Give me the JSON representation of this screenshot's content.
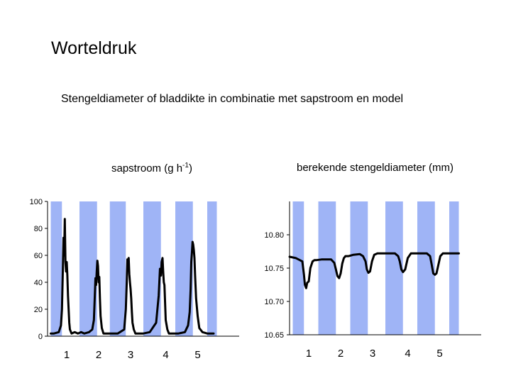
{
  "title": "Worteldruk",
  "subtitle": "Stengeldiameter of bladdikte in combinatie met sapstroom en  model",
  "colors": {
    "band": "#9fb4f6",
    "line": "#000000",
    "axis": "#000000"
  },
  "chart_data": [
    {
      "type": "line",
      "label": "sapstroom (g h",
      "label_sup": "-1",
      "label_end": ")",
      "ylim": [
        0,
        100
      ],
      "yticks": [
        "100",
        "80",
        "60",
        "40",
        "20",
        "0"
      ],
      "ytick_values": [
        100,
        80,
        60,
        40,
        20,
        0
      ],
      "xlim": [
        0,
        6
      ],
      "xticks": [
        "1",
        "2",
        "3",
        "4",
        "5"
      ],
      "xtick_values": [
        0.6,
        1.6,
        2.6,
        3.7,
        4.7
      ],
      "day_bands": [
        [
          0.1,
          0.45
        ],
        [
          1.0,
          1.55
        ],
        [
          1.95,
          2.45
        ],
        [
          3.0,
          3.55
        ],
        [
          4.0,
          4.55
        ],
        [
          5.0,
          5.3
        ]
      ],
      "series": [
        {
          "x": [
            0.1,
            0.2,
            0.35,
            0.42,
            0.45,
            0.48,
            0.5,
            0.52,
            0.54,
            0.56,
            0.58,
            0.6,
            0.62,
            0.64,
            0.66,
            0.68,
            0.7,
            0.75,
            0.85,
            0.95,
            1.05,
            1.15,
            1.3,
            1.4,
            1.45,
            1.48,
            1.5,
            1.52,
            1.54,
            1.56,
            1.58,
            1.6,
            1.62,
            1.64,
            1.66,
            1.7,
            1.75,
            1.85,
            2.0,
            2.2,
            2.4,
            2.45,
            2.48,
            2.5,
            2.52,
            2.54,
            2.56,
            2.58,
            2.6,
            2.62,
            2.64,
            2.66,
            2.7,
            2.75,
            2.85,
            3.0,
            3.2,
            3.4,
            3.48,
            3.52,
            3.55,
            3.57,
            3.6,
            3.62,
            3.64,
            3.66,
            3.68,
            3.7,
            3.75,
            3.8,
            3.9,
            4.1,
            4.3,
            4.4,
            4.45,
            4.48,
            4.5,
            4.52,
            4.54,
            4.56,
            4.58,
            4.6,
            4.62,
            4.65,
            4.7,
            4.75,
            4.85,
            5.0,
            5.2
          ],
          "y": [
            2,
            2,
            3,
            8,
            20,
            50,
            73,
            60,
            87,
            55,
            48,
            55,
            45,
            30,
            20,
            10,
            5,
            2,
            3,
            2,
            3,
            2,
            3,
            5,
            12,
            30,
            43,
            38,
            48,
            56,
            52,
            40,
            44,
            28,
            15,
            6,
            2,
            2,
            2,
            2,
            5,
            20,
            40,
            57,
            52,
            58,
            46,
            40,
            35,
            28,
            18,
            10,
            5,
            2,
            2,
            2,
            3,
            10,
            30,
            50,
            45,
            55,
            58,
            48,
            40,
            38,
            25,
            12,
            5,
            2,
            2,
            2,
            3,
            8,
            18,
            35,
            55,
            62,
            70,
            68,
            64,
            58,
            45,
            28,
            15,
            6,
            3,
            2,
            2
          ]
        }
      ]
    },
    {
      "type": "line",
      "label": "berekende stengeldiameter (mm)",
      "ylim": [
        10.65,
        10.85
      ],
      "yticks": [
        "10.80",
        "10.75",
        "10.70",
        "10.65"
      ],
      "ytick_values": [
        10.8,
        10.75,
        10.7,
        10.65
      ],
      "xlim": [
        0,
        6
      ],
      "xticks": [
        "1",
        "2",
        "3",
        "4",
        "5"
      ],
      "xtick_values": [
        0.6,
        1.6,
        2.6,
        3.7,
        4.7
      ],
      "day_bands": [
        [
          0.1,
          0.45
        ],
        [
          0.9,
          1.45
        ],
        [
          1.9,
          2.45
        ],
        [
          3.0,
          3.55
        ],
        [
          4.0,
          4.55
        ],
        [
          5.0,
          5.3
        ]
      ],
      "series": [
        {
          "x": [
            0.0,
            0.2,
            0.4,
            0.45,
            0.48,
            0.52,
            0.55,
            0.6,
            0.65,
            0.72,
            0.78,
            0.85,
            1.0,
            1.3,
            1.4,
            1.45,
            1.5,
            1.55,
            1.6,
            1.65,
            1.7,
            1.75,
            1.85,
            2.0,
            2.2,
            2.3,
            2.38,
            2.42,
            2.47,
            2.52,
            2.58,
            2.65,
            2.75,
            3.0,
            3.3,
            3.4,
            3.45,
            3.5,
            3.55,
            3.62,
            3.7,
            3.8,
            4.0,
            4.3,
            4.4,
            4.45,
            4.5,
            4.55,
            4.6,
            4.66,
            4.72,
            4.8,
            4.9,
            5.0,
            5.3
          ],
          "y": [
            10.767,
            10.765,
            10.76,
            10.74,
            10.725,
            10.72,
            10.728,
            10.73,
            10.75,
            10.76,
            10.762,
            10.762,
            10.763,
            10.763,
            10.758,
            10.748,
            10.738,
            10.735,
            10.742,
            10.757,
            10.765,
            10.768,
            10.768,
            10.77,
            10.771,
            10.768,
            10.76,
            10.748,
            10.743,
            10.745,
            10.76,
            10.77,
            10.772,
            10.772,
            10.772,
            10.768,
            10.76,
            10.748,
            10.744,
            10.748,
            10.765,
            10.772,
            10.772,
            10.772,
            10.768,
            10.755,
            10.742,
            10.74,
            10.742,
            10.755,
            10.768,
            10.772,
            10.772,
            10.772,
            10.772
          ]
        }
      ]
    }
  ]
}
